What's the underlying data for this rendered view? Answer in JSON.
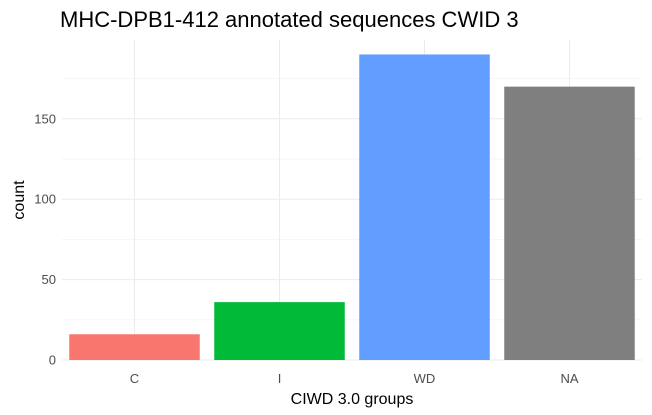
{
  "chart_data": {
    "type": "bar",
    "title": "MHC-DPB1-412 annotated sequences CWID 3",
    "xlabel": "CIWD 3.0 groups",
    "ylabel": "count",
    "categories": [
      "C",
      "I",
      "WD",
      "NA"
    ],
    "values": [
      16,
      36,
      190,
      170
    ],
    "colors": [
      "#F8766D",
      "#00BA38",
      "#619CFF",
      "#7F7F7F"
    ],
    "ylim": [
      0,
      199
    ],
    "yticks": [
      0,
      50,
      100,
      150
    ],
    "grid": true,
    "legend": "none"
  }
}
